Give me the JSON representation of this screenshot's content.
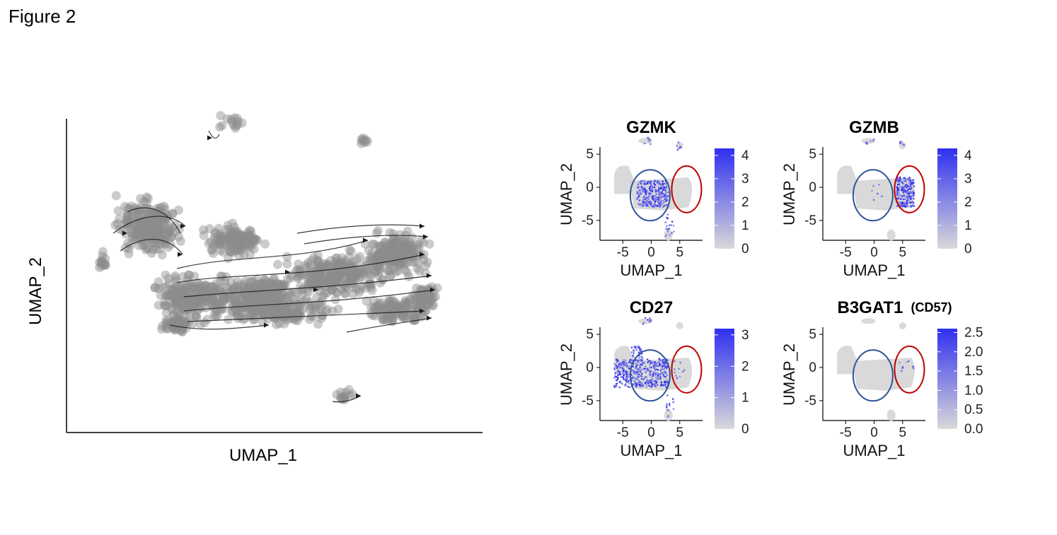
{
  "figure_title": "Figure 2",
  "chart_data": [
    {
      "type": "scatter",
      "description_role": "velocity-stream-umap",
      "xlabel": "UMAP_1",
      "ylabel": "UMAP_2",
      "title": "",
      "grid": false,
      "point_color": "#8c8c8c",
      "arrow_color": "#1a1a1a"
    },
    {
      "type": "scatter",
      "title": "GZMK",
      "title_suffix": "",
      "xlabel": "UMAP_1",
      "ylabel": "UMAP_2",
      "x_ticks": [
        "-5",
        "0",
        "5"
      ],
      "y_ticks": [
        "5",
        "0",
        "-5"
      ],
      "xlim": [
        -9,
        9
      ],
      "ylim": [
        -8,
        8
      ],
      "legend_ticks": [
        "4",
        "3",
        "2",
        "1",
        "0"
      ],
      "legend_range": [
        0,
        4.3
      ],
      "expression_region": "left-cluster",
      "annotations": [
        "blue-circle",
        "red-circle"
      ]
    },
    {
      "type": "scatter",
      "title": "GZMB",
      "title_suffix": "",
      "xlabel": "UMAP_1",
      "ylabel": "UMAP_2",
      "x_ticks": [
        "-5",
        "0",
        "5"
      ],
      "y_ticks": [
        "5",
        "0",
        "-5"
      ],
      "xlim": [
        -9,
        9
      ],
      "ylim": [
        -8,
        8
      ],
      "legend_ticks": [
        "4",
        "3",
        "2",
        "1",
        "0"
      ],
      "legend_range": [
        0,
        4.3
      ],
      "expression_region": "right-cluster",
      "annotations": [
        "blue-circle",
        "red-circle"
      ]
    },
    {
      "type": "scatter",
      "title": "CD27",
      "title_suffix": "",
      "xlabel": "UMAP_1",
      "ylabel": "UMAP_2",
      "x_ticks": [
        "-5",
        "0",
        "5"
      ],
      "y_ticks": [
        "5",
        "0",
        "-5"
      ],
      "xlim": [
        -9,
        9
      ],
      "ylim": [
        -8,
        8
      ],
      "legend_ticks": [
        "3",
        "2",
        "1",
        "0"
      ],
      "legend_range": [
        0,
        3.2
      ],
      "expression_region": "left-broad",
      "annotations": [
        "blue-circle",
        "red-circle"
      ]
    },
    {
      "type": "scatter",
      "title": "B3GAT1",
      "title_suffix": "(CD57)",
      "xlabel": "UMAP_1",
      "ylabel": "UMAP_2",
      "x_ticks": [
        "-5",
        "0",
        "5"
      ],
      "y_ticks": [
        "5",
        "0",
        "-5"
      ],
      "xlim": [
        -9,
        9
      ],
      "ylim": [
        -8,
        8
      ],
      "legend_ticks": [
        "2.5",
        "2.0",
        "1.5",
        "1.0",
        "0.5",
        "0.0"
      ],
      "legend_range": [
        0,
        2.6
      ],
      "expression_region": "sparse-right",
      "annotations": [
        "blue-circle",
        "red-circle"
      ]
    }
  ],
  "colors": {
    "low": "#d9d9d9",
    "high": "#2f2ff0",
    "blue_circle": "#2f5597",
    "red_circle": "#c00000",
    "grey_points": "#8c8c8c"
  }
}
